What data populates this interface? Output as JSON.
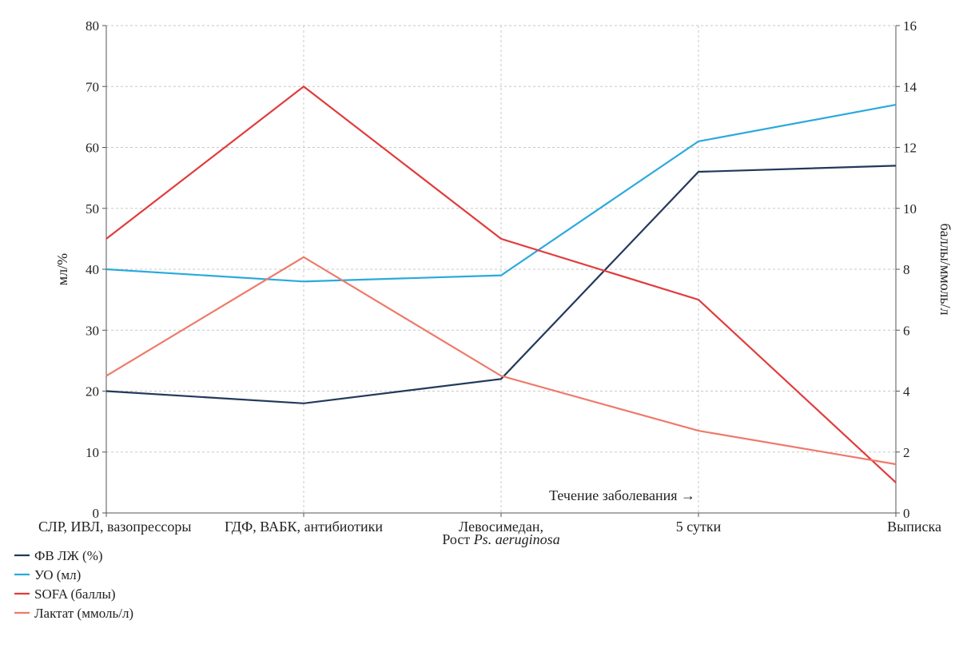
{
  "chart_data": {
    "type": "line",
    "categories": [
      [
        "СЛР, ИВЛ, вазопрессоры"
      ],
      [
        "ГДФ, ВАБК, антибиотики"
      ],
      [
        "Левосимедан,",
        "Рост Ps. aeruginosa"
      ],
      [
        "5 сутки"
      ],
      [
        "Выписка"
      ]
    ],
    "category_italic_suffix": {
      "2": {
        "line": 1,
        "plain": "Рост ",
        "italic": "Ps. aeruginosa"
      }
    },
    "ylabel_left": "мл/%",
    "ylabel_right": "баллы/ммоль/л",
    "ylim_left": [
      0,
      80
    ],
    "ylim_right": [
      0,
      16
    ],
    "yticks_left": [
      0,
      10,
      20,
      30,
      40,
      50,
      60,
      70,
      80
    ],
    "yticks_right": [
      0,
      2,
      4,
      6,
      8,
      10,
      12,
      14,
      16
    ],
    "annotation": "Течение заболевания →",
    "grid": true,
    "legend_position": "bottom-left",
    "series": [
      {
        "name": "ФВ ЛЖ (%)",
        "axis": "left",
        "color": "#23395b",
        "values": [
          20,
          18,
          22,
          56,
          57
        ]
      },
      {
        "name": "УО (мл)",
        "axis": "left",
        "color": "#2aa9de",
        "values": [
          40,
          38,
          39,
          61,
          67
        ]
      },
      {
        "name": "SOFA (баллы)",
        "axis": "right",
        "color": "#e03c3c",
        "values": [
          9,
          14,
          9,
          7,
          1
        ]
      },
      {
        "name": "Лактат (ммоль/л)",
        "axis": "right",
        "color": "#ee7a6a",
        "values": [
          4.5,
          8.4,
          4.5,
          2.7,
          1.6
        ]
      }
    ]
  }
}
